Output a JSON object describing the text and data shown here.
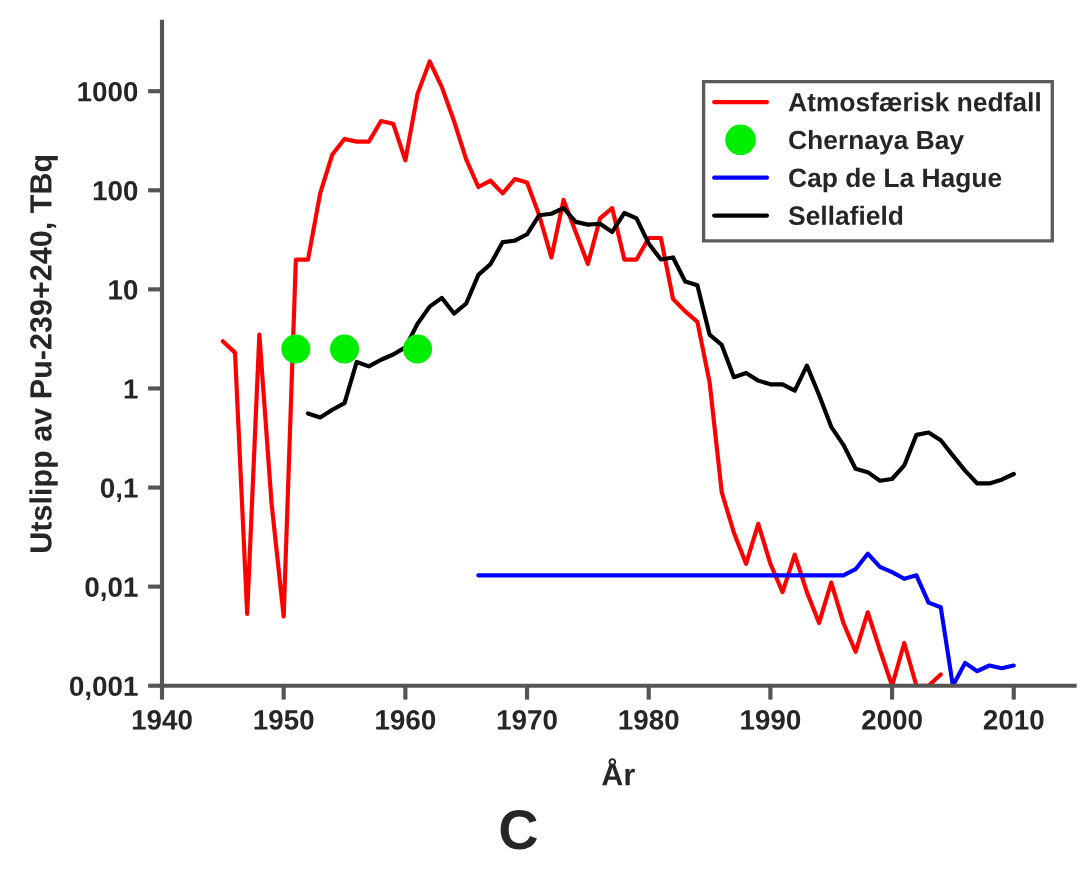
{
  "chart_data": {
    "type": "line",
    "title": "C",
    "xlabel": "År",
    "ylabel": "Utslipp av Pu-239+240, TBq",
    "log": "y",
    "xlim": [
      1940,
      2015
    ],
    "xticks": [
      1940,
      1950,
      1960,
      1970,
      1980,
      1990,
      2000,
      2010
    ],
    "ylim": [
      0.001,
      5000
    ],
    "yticks": [
      {
        "value": 0.001,
        "label": "0,001"
      },
      {
        "value": 0.01,
        "label": "0,01"
      },
      {
        "value": 0.1,
        "label": "0,1"
      },
      {
        "value": 1,
        "label": "1"
      },
      {
        "value": 10,
        "label": "10"
      },
      {
        "value": 100,
        "label": "100"
      },
      {
        "value": 1000,
        "label": "1000"
      }
    ],
    "grid": false,
    "legend": "top right",
    "series": [
      {
        "name": "Atmosfærisk nedfall",
        "color": "#ff0000",
        "marker": "none",
        "x": [
          1945,
          1946,
          1947,
          1948,
          1949,
          1950,
          1951,
          1952,
          1953,
          1954,
          1955,
          1956,
          1957,
          1958,
          1959,
          1960,
          1961,
          1962,
          1963,
          1964,
          1965,
          1966,
          1967,
          1968,
          1969,
          1970,
          1971,
          1972,
          1973,
          1974,
          1975,
          1976,
          1977,
          1978,
          1979,
          1980,
          1981,
          1982,
          1983,
          1984,
          1985,
          1986,
          1987,
          1988,
          1989,
          1990,
          1991,
          1992,
          1993,
          1994,
          1995,
          1996,
          1997,
          1998,
          1999,
          2000,
          2001,
          2002,
          2003,
          2004
        ],
        "values": [
          3,
          2.3,
          0.0053,
          3.5,
          0.07,
          0.005,
          20,
          20,
          93,
          230,
          330,
          310,
          310,
          500,
          470,
          200,
          940,
          2000,
          1100,
          500,
          205,
          108,
          125,
          93,
          130,
          120,
          56,
          21,
          80,
          38,
          18,
          52,
          66,
          20,
          20,
          33,
          33,
          8,
          6,
          4.7,
          1.16,
          0.09,
          0.035,
          0.017,
          0.043,
          0.017,
          0.0088,
          0.021,
          0.0088,
          0.0043,
          0.011,
          0.0043,
          0.0022,
          0.0055,
          0.0023,
          0.001,
          0.0027,
          0.001,
          0.001,
          0.0013
        ]
      },
      {
        "name": "Chernaya Bay",
        "color": "#00ee00",
        "type": "scatter",
        "marker": "circle",
        "x": [
          1951,
          1955,
          1961
        ],
        "values": [
          2.5,
          2.5,
          2.5
        ]
      },
      {
        "name": "Cap de La Hague",
        "color": "#0000ff",
        "marker": "none",
        "x": [
          1966,
          1996,
          1997,
          1998,
          1999,
          2000,
          2001,
          2002,
          2003,
          2004,
          2005,
          2006,
          2007,
          2008,
          2009,
          2010
        ],
        "values": [
          0.013,
          0.013,
          0.015,
          0.0215,
          0.0158,
          0.014,
          0.012,
          0.013,
          0.0069,
          0.0062,
          0.001,
          0.0017,
          0.0014,
          0.0016,
          0.0015,
          0.0016
        ]
      },
      {
        "name": "Sellafield",
        "color": "#000000",
        "marker": "none",
        "x": [
          1952,
          1953,
          1954,
          1955,
          1956,
          1957,
          1958,
          1959,
          1960,
          1961,
          1962,
          1963,
          1964,
          1965,
          1966,
          1967,
          1968,
          1969,
          1970,
          1971,
          1972,
          1973,
          1974,
          1975,
          1976,
          1977,
          1978,
          1979,
          1980,
          1981,
          1982,
          1983,
          1984,
          1985,
          1986,
          1987,
          1988,
          1989,
          1990,
          1991,
          1992,
          1993,
          1994,
          1995,
          1996,
          1997,
          1998,
          1999,
          2000,
          2001,
          2002,
          2003,
          2004,
          2005,
          2006,
          2007,
          2008,
          2009,
          2010
        ],
        "values": [
          0.56,
          0.51,
          0.61,
          0.71,
          1.85,
          1.67,
          1.95,
          2.2,
          2.6,
          4.5,
          6.7,
          8.2,
          5.7,
          7.2,
          14,
          18,
          30,
          31,
          36,
          56,
          58,
          66,
          48,
          45,
          46,
          38,
          59,
          52,
          29,
          20,
          21,
          12,
          11,
          3.5,
          2.75,
          1.3,
          1.43,
          1.2,
          1.1,
          1.1,
          0.95,
          1.7,
          0.86,
          0.41,
          0.27,
          0.155,
          0.143,
          0.117,
          0.122,
          0.167,
          0.34,
          0.36,
          0.3,
          0.21,
          0.148,
          0.11,
          0.11,
          0.12,
          0.137
        ]
      }
    ]
  }
}
